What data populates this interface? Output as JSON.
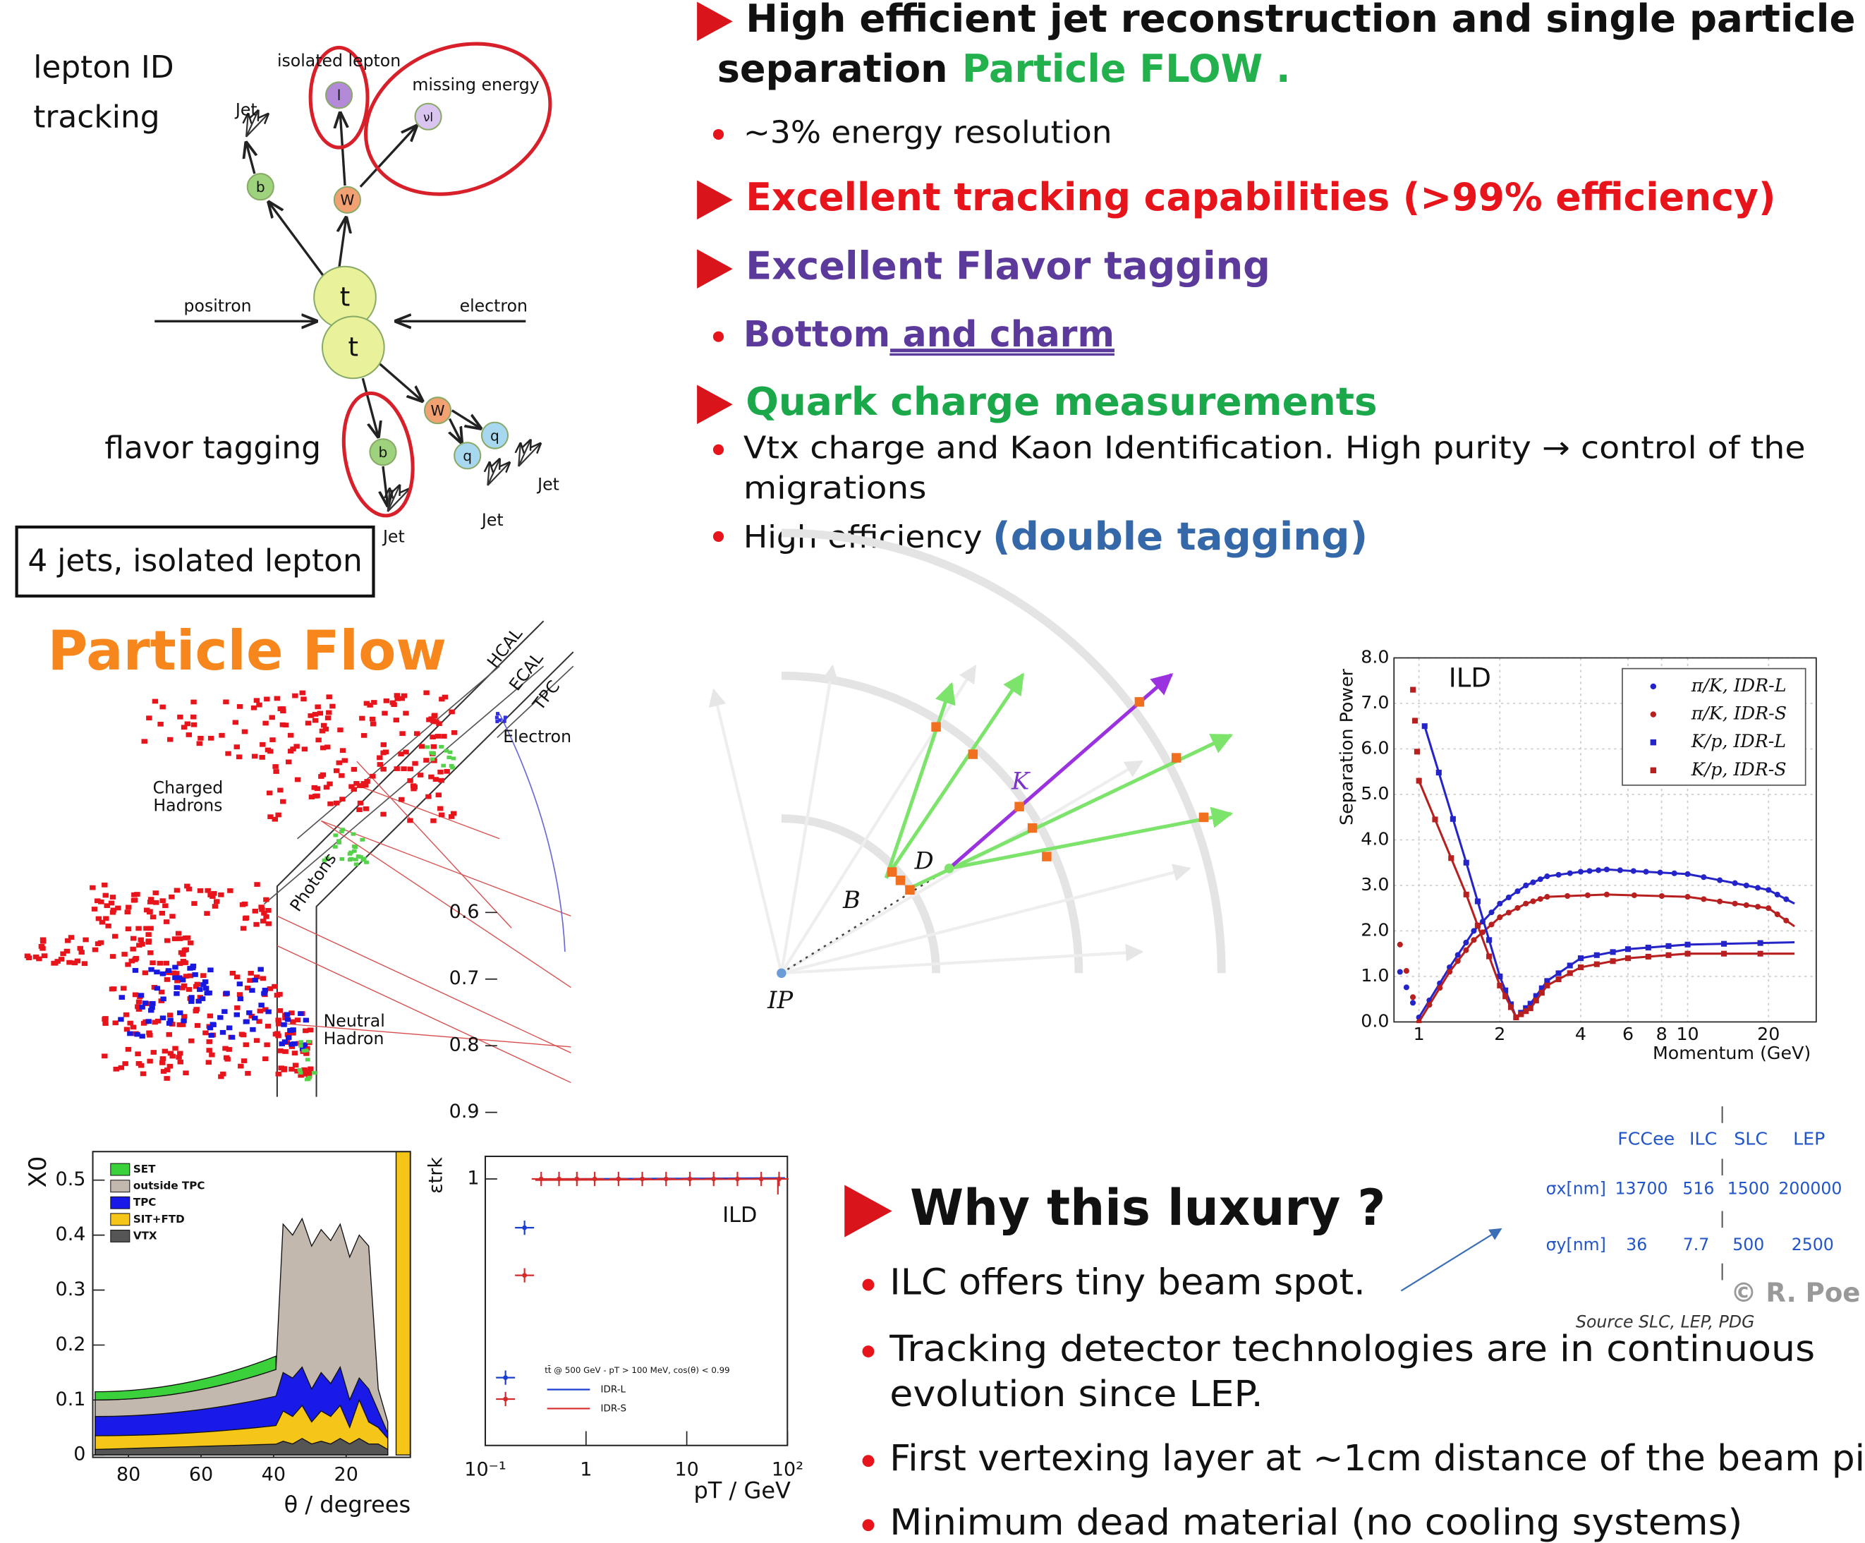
{
  "text": {
    "jet_reco": [
      "High efficient jet reconstruction and single particle",
      "separation"
    ],
    "particle_flow_em": "Particle FLOW .",
    "energy_resolution": "~3% energy resolution",
    "tracking": "Excellent tracking capabilities (>99% efficiency)",
    "flavor": "Excellent Flavor tagging",
    "bottom": "Bottom",
    "and_charm": " and charm",
    "quark_charge": "Quark charge measurements",
    "vtx_charge": [
      "Vtx charge and Kaon Identification. High purity → control of the",
      "migrations"
    ],
    "high_eff": "High efficiency ",
    "double_tagging": "(double tagging)",
    "why": "Why this luxury ?",
    "why_items": [
      [
        "ILC offers tiny beam spot."
      ],
      [
        "Tracking detector technologies are in continuous",
        "evolution since LEP."
      ],
      [
        "First vertexing layer at ~1cm distance of the beam pi"
      ],
      [
        "Minimum dead material (no cooling systems)"
      ]
    ]
  },
  "topology": {
    "lepton_id": "lepton ID",
    "tracking": "tracking",
    "isolated_lepton": "isolated lepton",
    "missing_energy": "missing energy",
    "jets": [
      "Jet",
      "Jet",
      "Jet",
      "Jet"
    ],
    "positron": "positron",
    "electron": "electron",
    "particles": {
      "t1": "t",
      "t2": "t",
      "w1": "W",
      "w2": "W",
      "b1": "b",
      "b2": "b",
      "l": "l",
      "nu": "νl",
      "q1": "q",
      "q2": "q"
    },
    "flavor_tagging": "flavor tagging",
    "caption": "4 jets, isolated lepton"
  },
  "particle_flow": {
    "title": "Particle Flow",
    "hcal": "HCAL",
    "ecal": "ECAL",
    "tpc": "TPC",
    "electron": "Electron",
    "charged_hadrons": [
      "Charged",
      "Hadrons"
    ],
    "photons": "Photons",
    "neutral_hadron": [
      "Neutral",
      "Hadron"
    ]
  },
  "decay": {
    "k": "K",
    "d": "D",
    "b": "B",
    "ip": "IP"
  },
  "separation_plot": {
    "label": "ILD",
    "ylabel": "Separation Power",
    "xlabel": "Momentum (GeV)",
    "yticks": [
      "0.0",
      "1.0",
      "2.0",
      "3.0",
      "4.0",
      "5.0",
      "6.0",
      "7.0",
      "8.0"
    ],
    "xticks": [
      "1",
      "2",
      "4",
      "6",
      "8",
      "10",
      "20"
    ],
    "legend": [
      "π/K, IDR-L",
      "π/K, IDR-S",
      "K/p, IDR-L",
      "K/p, IDR-S"
    ]
  },
  "material_plot": {
    "ylabel": "X0",
    "yticks": [
      "0",
      "0.1",
      "0.2",
      "0.3",
      "0.4",
      "0.5"
    ],
    "xticks": [
      "80",
      "60",
      "40",
      "20"
    ],
    "xlabel": "θ / degrees",
    "legend": [
      "SET",
      "outside TPC",
      "TPC",
      "SIT+FTD",
      "VTX"
    ]
  },
  "efficiency_plot": {
    "ylabel": "εtrk",
    "yticks": [
      "0.6",
      "0.7",
      "0.8",
      "0.9",
      "1"
    ],
    "xticks": [
      "10⁻¹",
      "1",
      "10",
      "10²"
    ],
    "xlabel": "pT / GeV",
    "label": "ILD",
    "legend_title": "tt̄ @ 500 GeV - pT > 100 MeV, cos(θ) < 0.99",
    "legend": [
      "IDR-L",
      "IDR-S"
    ]
  },
  "beam_table": {
    "header": [
      "FCCee",
      "ILC",
      "SLC",
      "LEP"
    ],
    "rows": [
      {
        "label": "σx[nm]",
        "cells": [
          "13700",
          "516",
          "1500",
          "200000"
        ]
      },
      {
        "label": "σy[nm]",
        "cells": [
          "36",
          "7.7",
          "500",
          "2500"
        ]
      }
    ],
    "credit": "© R. Poe",
    "source": "Source SLC, LEP, PDG"
  }
}
